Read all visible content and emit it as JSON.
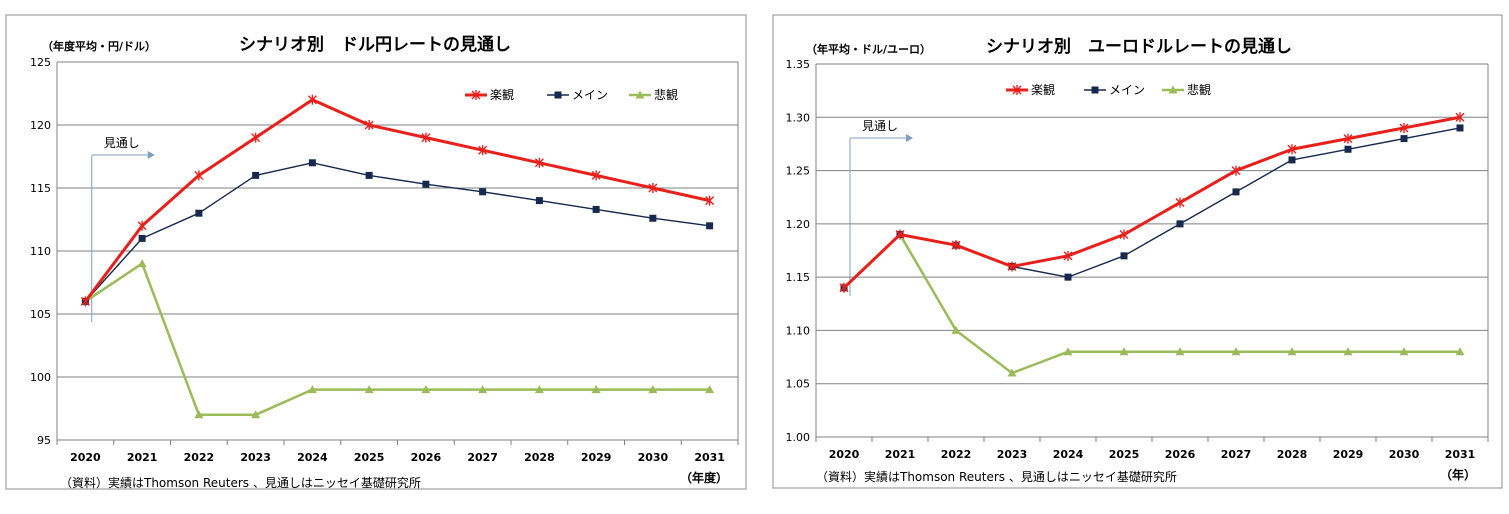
{
  "chart_data": [
    {
      "type": "line",
      "title": "シナリオ別　ドル円レートの見通し",
      "ylabel": "（年度平均・円/ドル）",
      "xlabel": "（年度）",
      "note": "（資料）実績はThomson Reuters 、見通しはニッセイ基礎研究所",
      "forecast_label": "見通し",
      "categories": [
        "2020",
        "2021",
        "2022",
        "2023",
        "2024",
        "2025",
        "2026",
        "2027",
        "2028",
        "2029",
        "2030",
        "2031"
      ],
      "ylim": [
        95,
        125
      ],
      "yticks": [
        95,
        100,
        105,
        110,
        115,
        120,
        125
      ],
      "ytick_labels": [
        "95",
        "100",
        "105",
        "110",
        "115",
        "120",
        "125"
      ],
      "grid": true,
      "series": [
        {
          "name": "楽観",
          "color": "#e8201c",
          "marker": "star",
          "values": [
            106,
            112,
            116,
            119,
            122,
            120,
            119,
            118,
            117,
            116,
            115,
            114
          ]
        },
        {
          "name": "メイン",
          "color": "#17294e",
          "marker": "square",
          "values": [
            106,
            111,
            113,
            116,
            117,
            116,
            115.3,
            114.7,
            114,
            113.3,
            112.6,
            112
          ]
        },
        {
          "name": "悲観",
          "color": "#9bbb59",
          "marker": "triangle",
          "values": [
            106,
            109,
            97,
            97,
            99,
            99,
            99,
            99,
            99,
            99,
            99,
            99
          ]
        }
      ]
    },
    {
      "type": "line",
      "title": "シナリオ別　ユーロドルレートの見通し",
      "ylabel": "（年平均・ドル/ユーロ）",
      "xlabel": "（年）",
      "note": "（資料）実績はThomson Reuters 、見通しはニッセイ基礎研究所",
      "forecast_label": "見通し",
      "categories": [
        "2020",
        "2021",
        "2022",
        "2023",
        "2024",
        "2025",
        "2026",
        "2027",
        "2028",
        "2029",
        "2030",
        "2031"
      ],
      "ylim": [
        1.0,
        1.35
      ],
      "yticks": [
        1.0,
        1.05,
        1.1,
        1.15,
        1.2,
        1.25,
        1.3,
        1.35
      ],
      "ytick_labels": [
        "1.00",
        "1.05",
        "1.10",
        "1.15",
        "1.20",
        "1.25",
        "1.30",
        "1.35"
      ],
      "grid": true,
      "series": [
        {
          "name": "楽観",
          "color": "#e8201c",
          "marker": "star",
          "values": [
            1.14,
            1.19,
            1.18,
            1.16,
            1.17,
            1.19,
            1.22,
            1.25,
            1.27,
            1.28,
            1.29,
            1.3
          ]
        },
        {
          "name": "メイン",
          "color": "#17294e",
          "marker": "square",
          "values": [
            1.14,
            1.19,
            1.18,
            1.16,
            1.15,
            1.17,
            1.2,
            1.23,
            1.26,
            1.27,
            1.28,
            1.29
          ]
        },
        {
          "name": "悲観",
          "color": "#9bbb59",
          "marker": "triangle",
          "values": [
            1.14,
            1.19,
            1.1,
            1.06,
            1.08,
            1.08,
            1.08,
            1.08,
            1.08,
            1.08,
            1.08,
            1.08
          ]
        }
      ]
    }
  ]
}
